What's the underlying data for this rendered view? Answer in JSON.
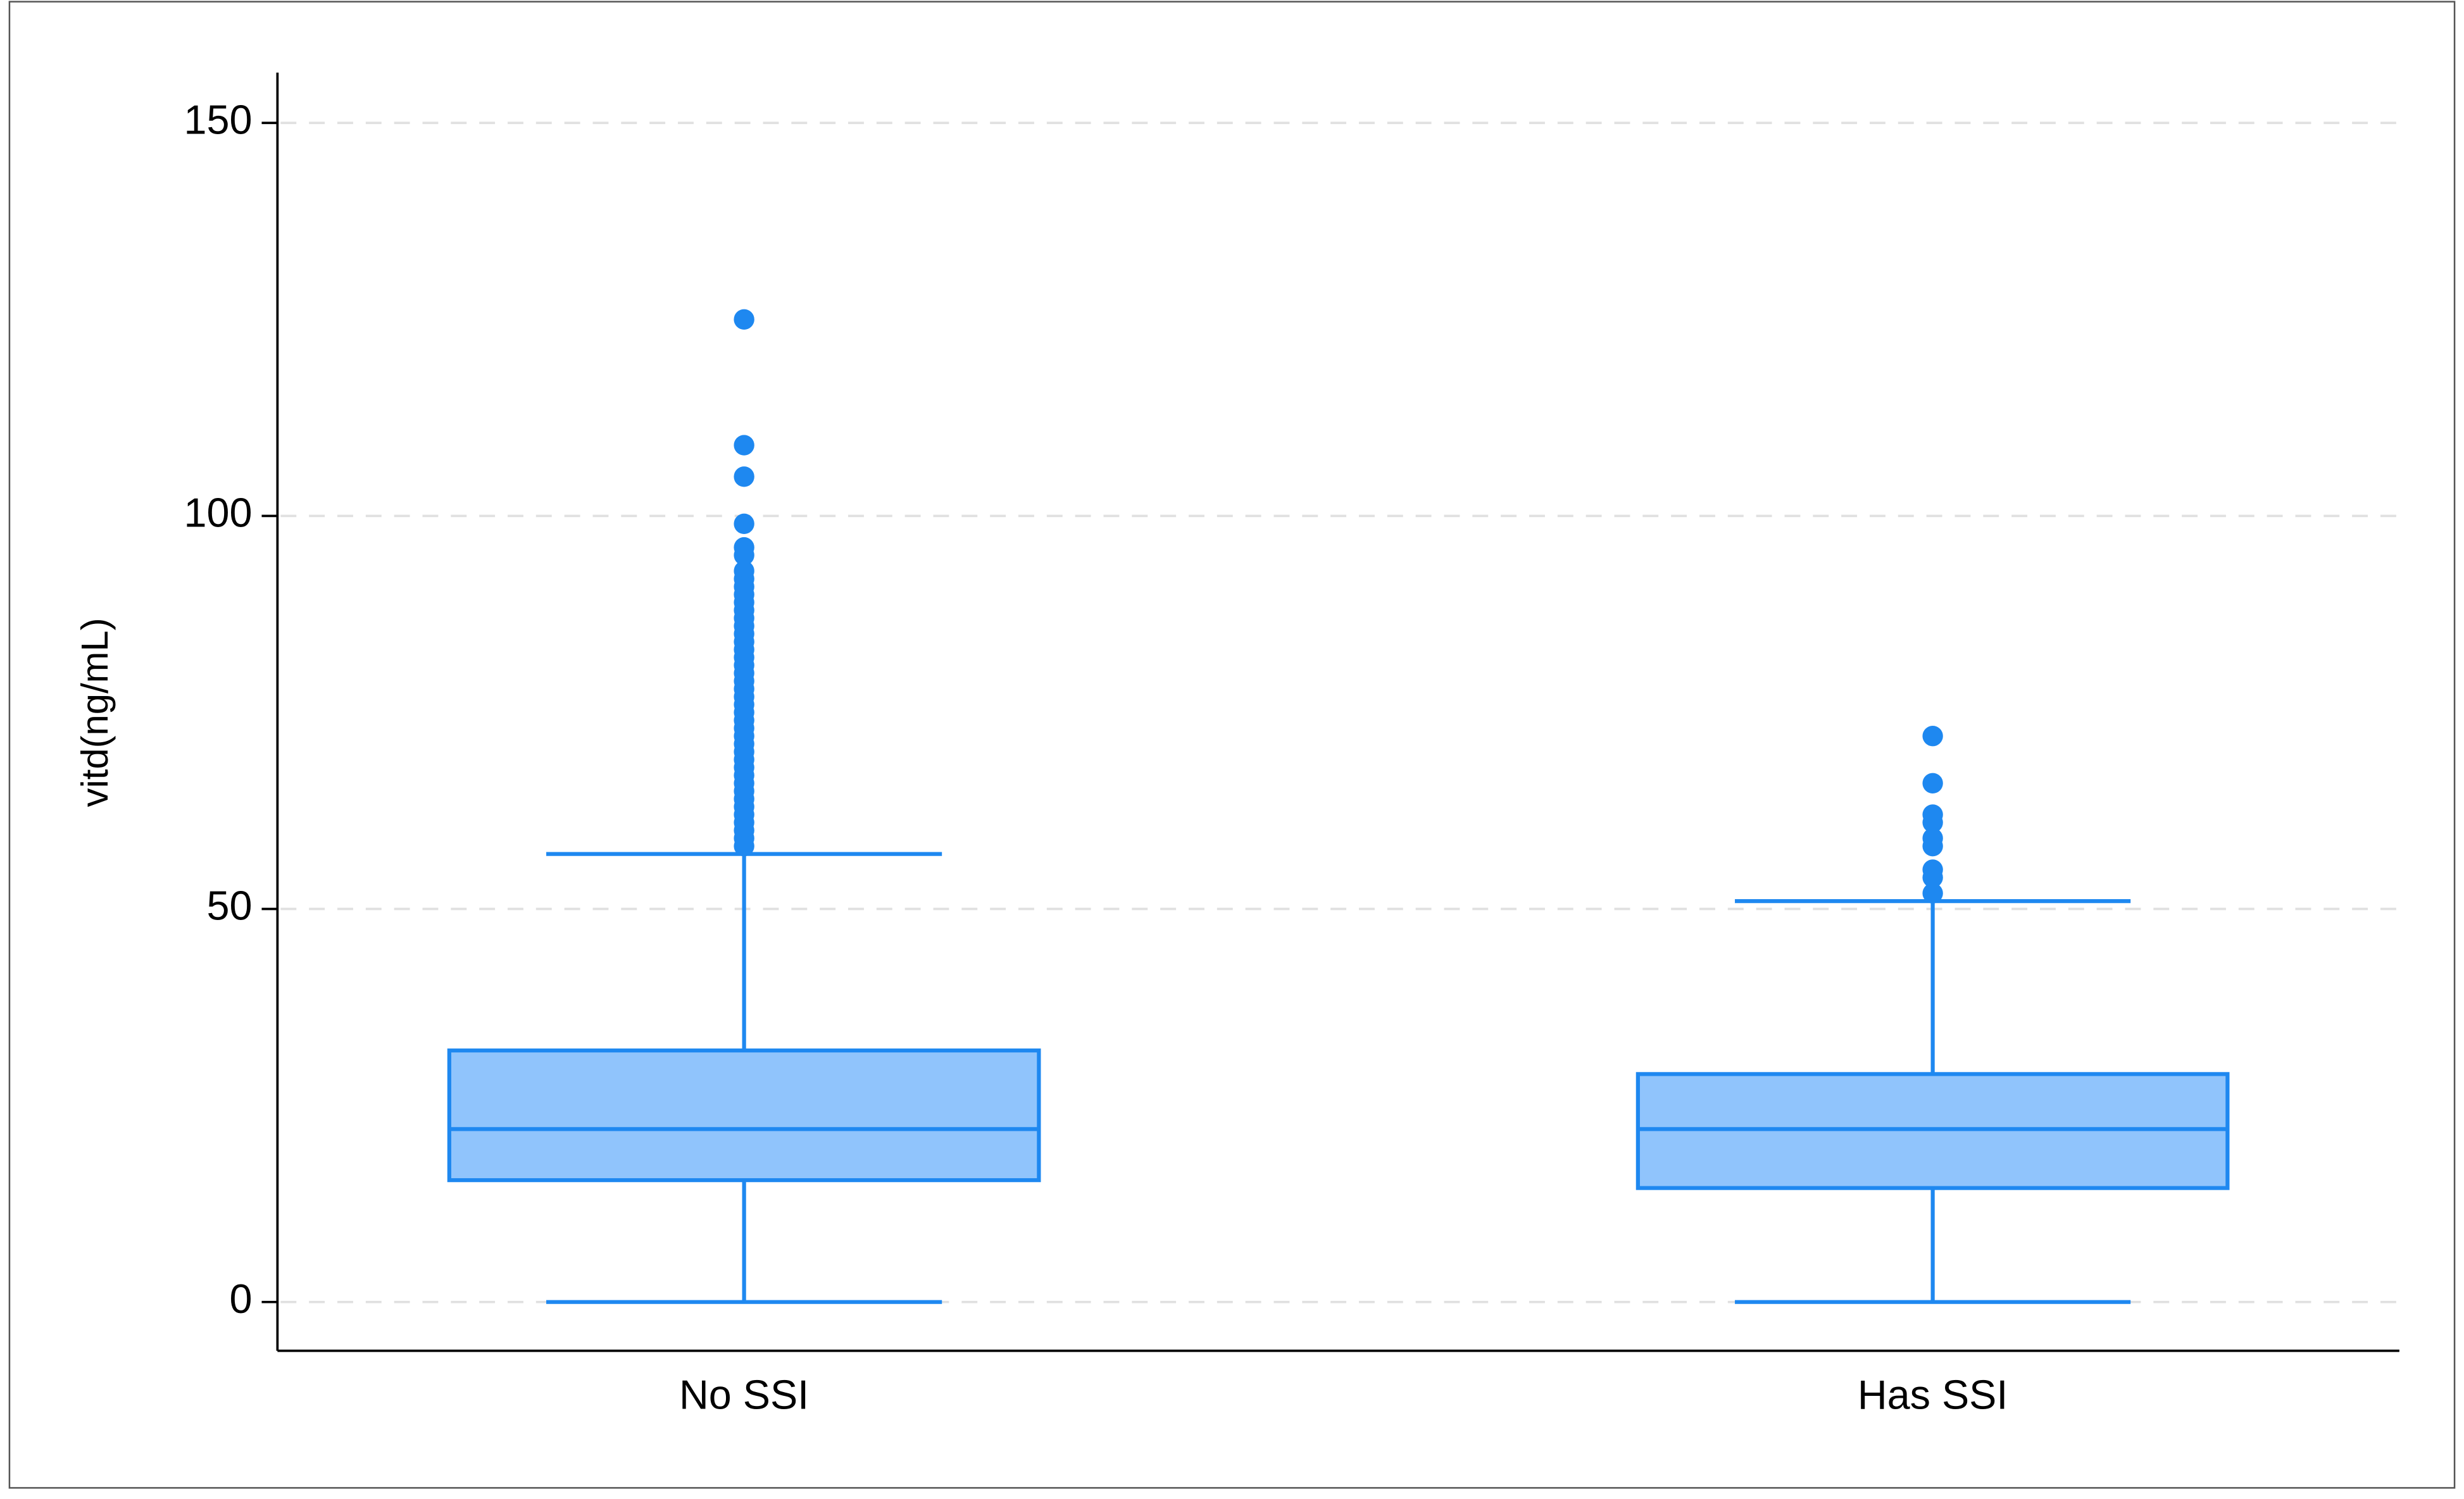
{
  "chart_data": {
    "type": "box",
    "y_label": "vitd(ng/mL)",
    "categories": [
      "No SSI",
      "Has SSI"
    ],
    "color": "#1e88f0",
    "fill": "#90c4fc",
    "boxes": [
      {
        "low": 0,
        "q1": 15.5,
        "median": 22,
        "q3": 32,
        "high": 57,
        "outliers": [
          125,
          109,
          105,
          99,
          96,
          95,
          93,
          92,
          91,
          90,
          89,
          88,
          87,
          86,
          85,
          84,
          83,
          82,
          81,
          80,
          79,
          78,
          77,
          76,
          75,
          74,
          73,
          72,
          71,
          70,
          69,
          68,
          67,
          66,
          65,
          64,
          63,
          62,
          61,
          60,
          59,
          58
        ]
      },
      {
        "low": 0,
        "q1": 14.5,
        "median": 22,
        "q3": 29,
        "high": 51,
        "outliers": [
          72,
          66,
          62,
          61,
          59,
          58,
          55,
          54,
          52
        ]
      }
    ],
    "ylim": [
      -6.2,
      156.4
    ],
    "yticks": [
      0,
      50,
      100,
      150
    ],
    "grid": true
  }
}
